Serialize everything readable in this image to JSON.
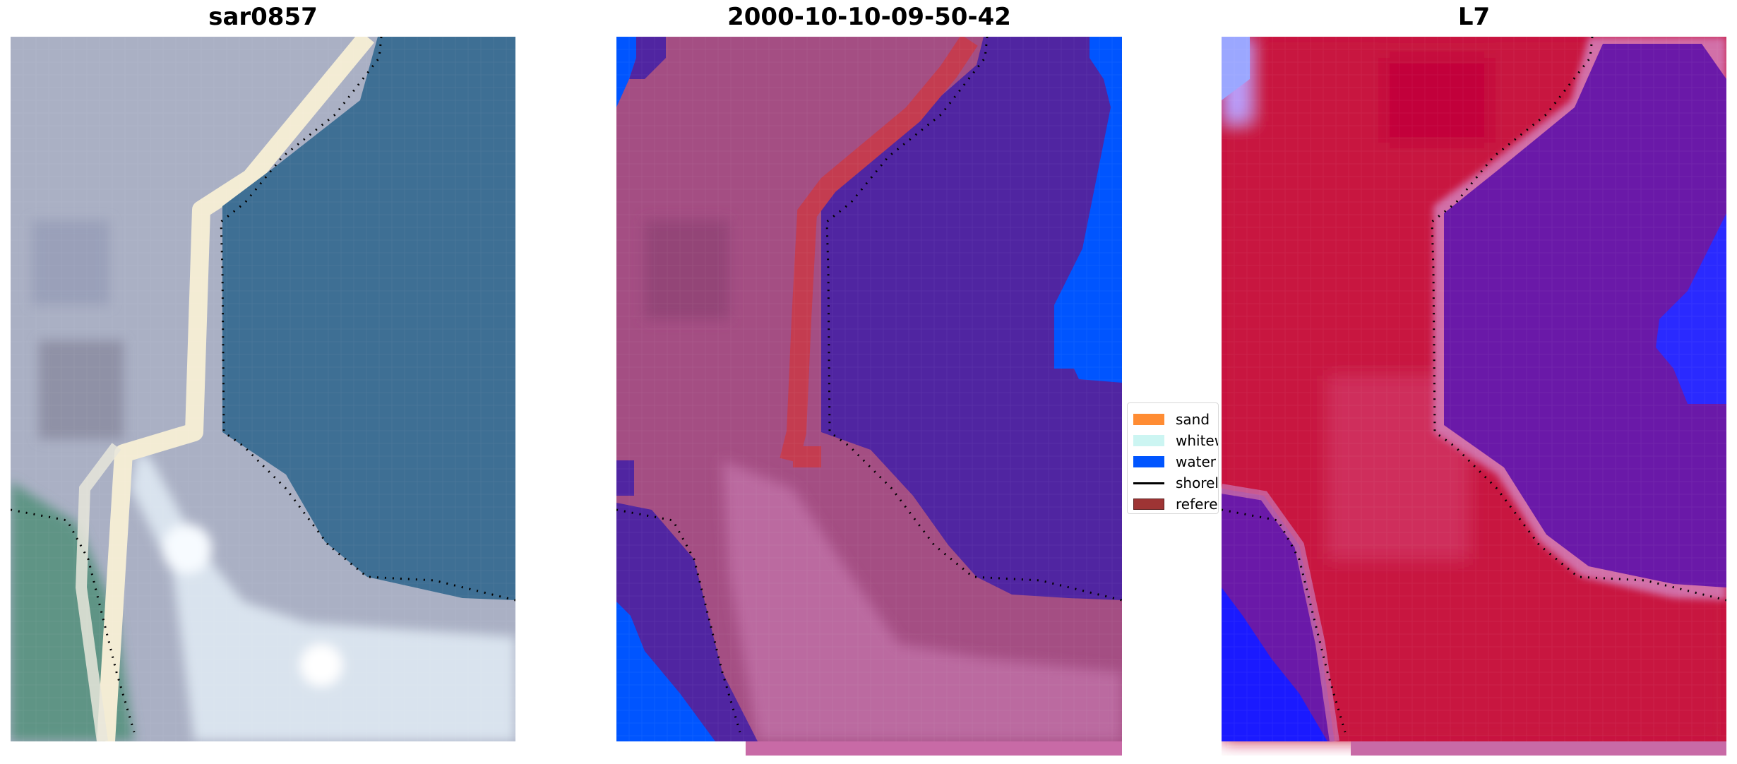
{
  "panels": [
    {
      "title": "sar0857"
    },
    {
      "title": "2000-10-10-09-50-42"
    },
    {
      "title": "L7"
    }
  ],
  "legend": {
    "items": [
      {
        "label": "sand",
        "color": "#ff8c33"
      },
      {
        "label": "whitewater",
        "color": "#ccf5f2"
      },
      {
        "label": "water",
        "color": "#0055ff"
      },
      {
        "label": "shoreline",
        "color": "#000000"
      },
      {
        "label": "reference",
        "color": "#9e3434"
      }
    ]
  },
  "colors": {
    "rgb_water": "#3e6f94",
    "rgb_land": "#aab0c4",
    "rgb_road": "#f3ecd4",
    "rgb_grass": "#5f9485",
    "rgb_bright": "#d9e3ee",
    "class_land": "#a44e83",
    "class_water_dark": "#5025a1",
    "class_water": "#0055ff",
    "class_reference": "#c43c50",
    "index_land": "#c8143f",
    "index_water": "#6a19a8",
    "index_blue": "#1a1aff",
    "index_pink": "#c86aa6"
  }
}
